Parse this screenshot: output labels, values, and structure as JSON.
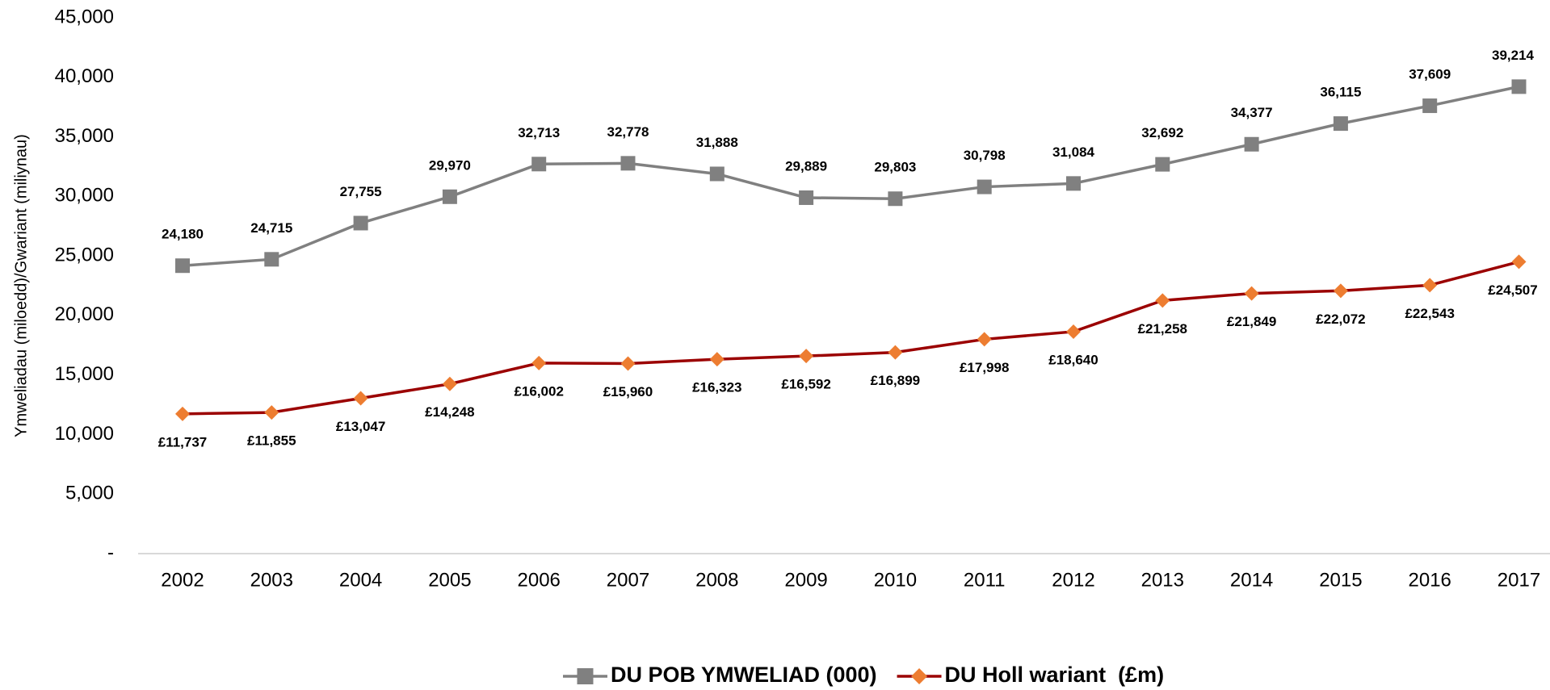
{
  "chart_data": {
    "type": "line",
    "y_axis_label": "Ymweliadau (miloedd)/Gwariant (miliynau)",
    "categories": [
      "2002",
      "2003",
      "2004",
      "2005",
      "2006",
      "2007",
      "2008",
      "2009",
      "2010",
      "2011",
      "2012",
      "2013",
      "2014",
      "2015",
      "2016",
      "2017"
    ],
    "series": [
      {
        "name": "DU POB YMWELIAD (000)",
        "color": "#808080",
        "marker_color": "#808080",
        "marker": "square",
        "values": [
          24180,
          24715,
          27755,
          29970,
          32713,
          32778,
          31888,
          29889,
          29803,
          30798,
          31084,
          32692,
          34377,
          36115,
          37609,
          39214
        ],
        "value_labels": [
          "24,180",
          "24,715",
          "27,755",
          "29,970",
          "32,713",
          "32,778",
          "31,888",
          "29,889",
          "29,803",
          "30,798",
          "31,084",
          "32,692",
          "34,377",
          "36,115",
          "37,609",
          "39,214"
        ]
      },
      {
        "name": "DU Holl wariant  (£m)",
        "color": "#9b0000",
        "marker_color": "#ed7d31",
        "marker": "diamond",
        "values": [
          11737,
          11855,
          13047,
          14248,
          16002,
          15960,
          16323,
          16592,
          16899,
          17998,
          18640,
          21258,
          21849,
          22072,
          22543,
          24507
        ],
        "value_labels": [
          "£11,737",
          "£11,855",
          "£13,047",
          "£14,248",
          "£16,002",
          "£15,960",
          "£16,323",
          "£16,592",
          "£16,899",
          "£17,998",
          "£18,640",
          "£21,258",
          "£21,849",
          "£22,072",
          "£22,543",
          "£24,507"
        ]
      }
    ],
    "ylim": [
      0,
      45000
    ],
    "yticks": [
      {
        "value": 0,
        "label": "-"
      },
      {
        "value": 5000,
        "label": "5,000"
      },
      {
        "value": 10000,
        "label": "10,000"
      },
      {
        "value": 15000,
        "label": "15,000"
      },
      {
        "value": 20000,
        "label": "20,000"
      },
      {
        "value": 25000,
        "label": "25,000"
      },
      {
        "value": 30000,
        "label": "30,000"
      },
      {
        "value": 35000,
        "label": "35,000"
      },
      {
        "value": 40000,
        "label": "40,000"
      },
      {
        "value": 45000,
        "label": "45,000"
      }
    ],
    "grid": false,
    "legend": "bottom"
  }
}
